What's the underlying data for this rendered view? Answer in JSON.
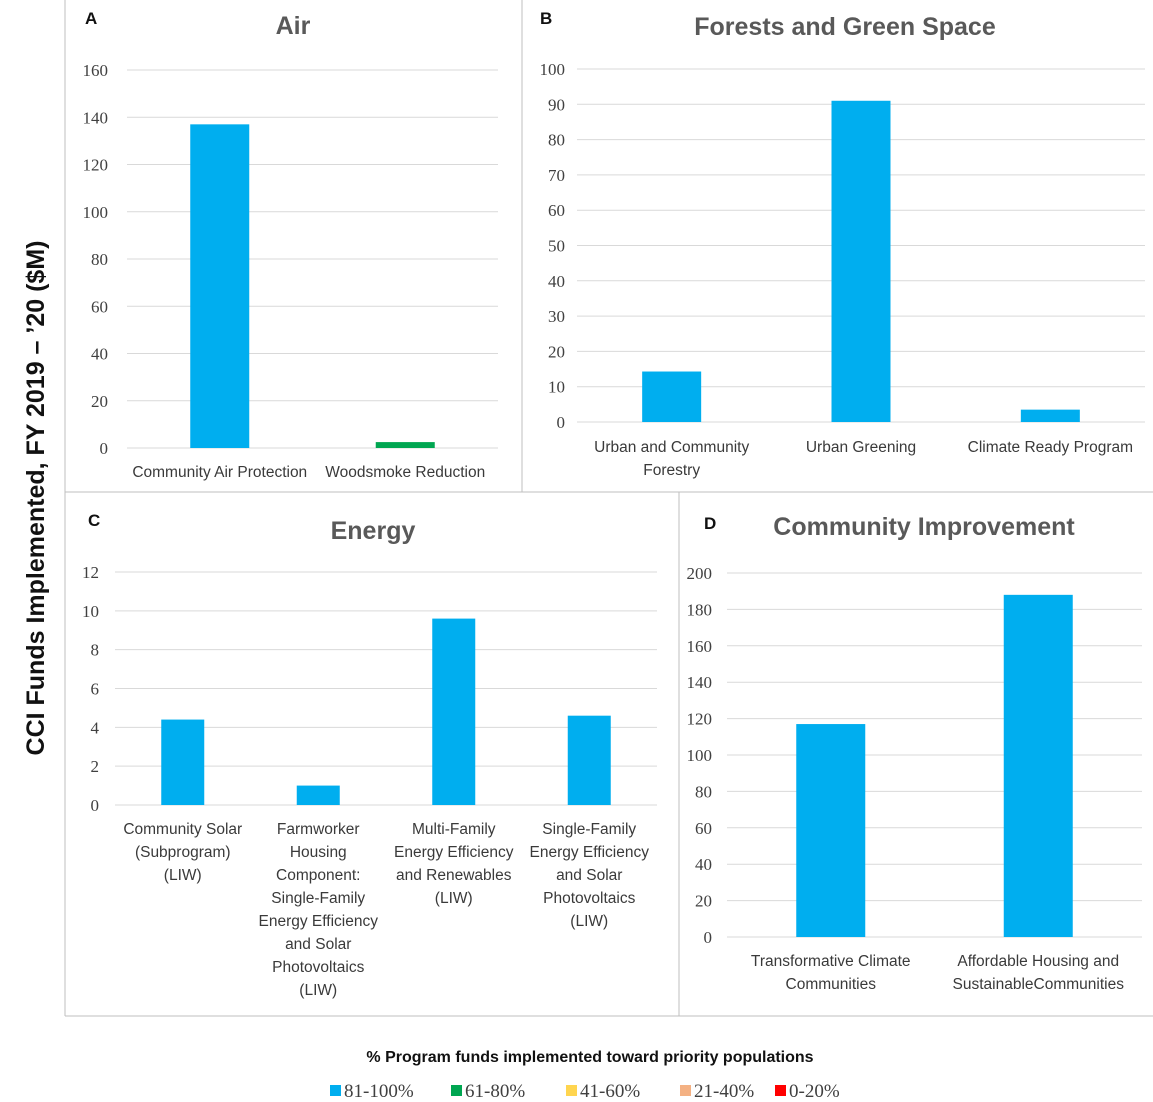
{
  "figure": {
    "y_axis_title": "CCI Funds Implemented, FY 2019 – ’20 ($M)",
    "legend_title": "% Program funds implemented toward priority populations",
    "legend": [
      {
        "label": "81-100%",
        "color": "#00AEEF"
      },
      {
        "label": "61-80%",
        "color": "#00A651"
      },
      {
        "label": "41-60%",
        "color": "#FFD54F"
      },
      {
        "label": "21-40%",
        "color": "#F4B183"
      },
      {
        "label": "0-20%",
        "color": "#FF0000"
      }
    ]
  },
  "chart_data": [
    {
      "letter": "A",
      "type": "bar",
      "title": "Air",
      "categories": [
        [
          "Community Air Protection"
        ],
        [
          "Woodsmoke Reduction"
        ]
      ],
      "values": [
        137,
        2.5
      ],
      "colors": [
        "#00AEEF",
        "#00A651"
      ],
      "ylim": [
        0,
        160
      ],
      "yticks": [
        0,
        20,
        40,
        60,
        80,
        100,
        120,
        140,
        160
      ],
      "grid": true
    },
    {
      "letter": "B",
      "type": "bar",
      "title": "Forests and Green Space",
      "categories": [
        [
          "Urban and Community",
          "Forestry"
        ],
        [
          "Urban Greening"
        ],
        [
          "Climate Ready Program"
        ]
      ],
      "values": [
        14.3,
        91,
        3.5
      ],
      "colors": [
        "#00AEEF",
        "#00AEEF",
        "#00AEEF"
      ],
      "ylim": [
        0,
        100
      ],
      "yticks": [
        0,
        10,
        20,
        30,
        40,
        50,
        60,
        70,
        80,
        90,
        100
      ],
      "grid": true
    },
    {
      "letter": "C",
      "type": "bar",
      "title": "Energy",
      "categories": [
        [
          "Community Solar",
          "(Subprogram)",
          "(LIW)"
        ],
        [
          "Farmworker",
          "Housing",
          "Component:",
          "Single-Family",
          "Energy Efficiency",
          "and Solar",
          "Photovoltaics",
          "(LIW)"
        ],
        [
          "Multi-Family",
          "Energy Efficiency",
          "and Renewables",
          "(LIW)"
        ],
        [
          "Single-Family",
          "Energy Efficiency",
          "and Solar",
          "Photovoltaics",
          "(LIW)"
        ]
      ],
      "values": [
        4.4,
        1.0,
        9.6,
        4.6
      ],
      "colors": [
        "#00AEEF",
        "#00AEEF",
        "#00AEEF",
        "#00AEEF"
      ],
      "ylim": [
        0,
        12
      ],
      "yticks": [
        0,
        2,
        4,
        6,
        8,
        10,
        12
      ],
      "grid": true
    },
    {
      "letter": "D",
      "type": "bar",
      "title": "Community Improvement",
      "categories": [
        [
          "Transformative Climate",
          "Communities"
        ],
        [
          "Affordable Housing and",
          "SustainableCommunities"
        ]
      ],
      "values": [
        117,
        188
      ],
      "colors": [
        "#00AEEF",
        "#00AEEF"
      ],
      "ylim": [
        0,
        200
      ],
      "yticks": [
        0,
        20,
        40,
        60,
        80,
        100,
        120,
        140,
        160,
        180,
        200
      ],
      "grid": true
    }
  ]
}
